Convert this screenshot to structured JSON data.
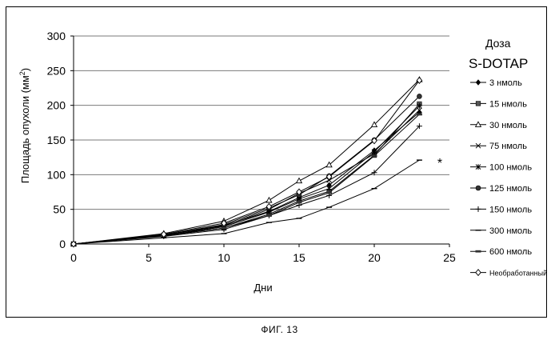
{
  "caption": "ФИГ. 13",
  "chart_data": {
    "type": "line",
    "title": "",
    "xlabel": "Дни",
    "ylabel": "Площадь опухоли (мм",
    "ylabel_superscript": "2",
    "ylabel_suffix": ")",
    "xlim": [
      0,
      25
    ],
    "ylim": [
      0,
      300
    ],
    "xticks": [
      0,
      5,
      10,
      15,
      20,
      25
    ],
    "yticks": [
      0,
      50,
      100,
      150,
      200,
      250,
      300
    ],
    "grid": "horizontal",
    "legend_position": "right",
    "legend_title_line1": "Доза",
    "legend_title_line2": "S-DOTAP",
    "annotation": "*",
    "x": [
      0,
      6,
      10,
      13,
      15,
      17,
      20,
      23
    ],
    "series": [
      {
        "name": "3 нмоль",
        "marker": "diamond-filled",
        "values": [
          0,
          13,
          27,
          47,
          67,
          85,
          135,
          190
        ]
      },
      {
        "name": "15 нмоль",
        "marker": "square-filled",
        "values": [
          0,
          12,
          23,
          43,
          62,
          76,
          128,
          202
        ]
      },
      {
        "name": "30 нмоль",
        "marker": "triangle-open",
        "values": [
          0,
          15,
          33,
          63,
          91,
          114,
          172,
          237
        ]
      },
      {
        "name": "75 нмоль",
        "marker": "x",
        "values": [
          0,
          13,
          26,
          50,
          73,
          92,
          130,
          193
        ]
      },
      {
        "name": "100 нмоль",
        "marker": "star",
        "values": [
          0,
          12,
          25,
          46,
          65,
          80,
          133,
          199
        ]
      },
      {
        "name": "125 нмоль",
        "marker": "circle-filled",
        "values": [
          0,
          13,
          28,
          52,
          71,
          98,
          150,
          213
        ]
      },
      {
        "name": "150 нмоль",
        "marker": "plus",
        "values": [
          0,
          11,
          21,
          41,
          56,
          70,
          103,
          170
        ]
      },
      {
        "name": "300 нмоль",
        "marker": "dash",
        "values": [
          0,
          9,
          15,
          31,
          37,
          53,
          80,
          121
        ]
      },
      {
        "name": "600 нмоль",
        "marker": "dash-thick",
        "values": [
          0,
          12,
          23,
          41,
          60,
          74,
          127,
          187
        ]
      },
      {
        "name": "Необработанный",
        "marker": "diamond-open",
        "values": [
          0,
          14,
          30,
          54,
          75,
          97,
          149,
          236
        ]
      }
    ]
  }
}
